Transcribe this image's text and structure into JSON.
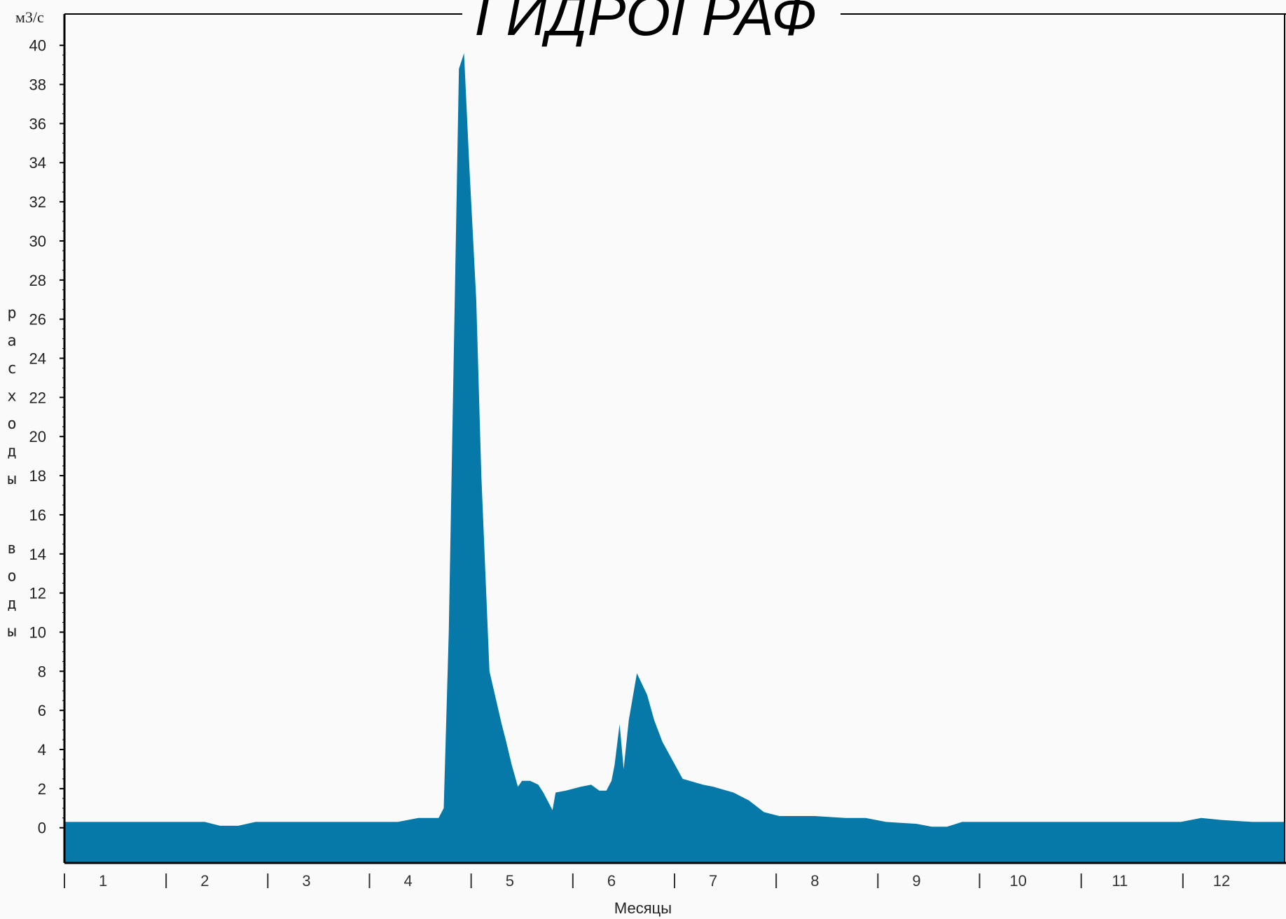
{
  "chart_data": {
    "type": "area",
    "title": "ГИДРОГРАФ",
    "unit_label": "м3/с",
    "ylabel": "расходы воды",
    "xlabel": "Месяцы",
    "ylim": [
      -1.8,
      41.6
    ],
    "xlim": [
      0.62,
      12.62
    ],
    "yticks": [
      "0",
      "2",
      "4",
      "6",
      "8",
      "10",
      "12",
      "14",
      "16",
      "18",
      "20",
      "22",
      "24",
      "26",
      "28",
      "30",
      "32",
      "34",
      "36",
      "38",
      "40"
    ],
    "month_labels": [
      "1",
      "2",
      "3",
      "4",
      "5",
      "6",
      "7",
      "8",
      "9",
      "10",
      "11",
      "12"
    ],
    "fill_color": "#0679a8",
    "series": [
      {
        "x": [
          0.62,
          1.5,
          2.0,
          2.15,
          2.33,
          2.5,
          3.0,
          3.5,
          3.75,
          3.9,
          4.1,
          4.25,
          4.3,
          4.35,
          4.4,
          4.5,
          4.55,
          4.6,
          4.67,
          4.72,
          4.8,
          4.92,
          4.96,
          5.02,
          5.08,
          5.12,
          5.2,
          5.28,
          5.33,
          5.42,
          5.45,
          5.55,
          5.7,
          5.8,
          5.88,
          5.95,
          6.0,
          6.03,
          6.08,
          6.12,
          6.17,
          6.25,
          6.35,
          6.42,
          6.5,
          6.7,
          6.9,
          7.0,
          7.2,
          7.35,
          7.5,
          7.65,
          8.0,
          8.3,
          8.5,
          8.7,
          9.0,
          9.15,
          9.3,
          9.45,
          10.0,
          10.6,
          11.2,
          11.6,
          11.8,
          12.0,
          12.3,
          12.62
        ],
        "y": [
          0.3,
          0.3,
          0.3,
          0.1,
          0.1,
          0.3,
          0.3,
          0.3,
          0.3,
          0.3,
          0.5,
          0.5,
          0.5,
          1.0,
          10.0,
          38.8,
          39.6,
          34.0,
          27.0,
          18.0,
          8.0,
          5.3,
          4.5,
          3.2,
          2.1,
          2.4,
          2.4,
          2.2,
          1.8,
          0.9,
          1.8,
          1.9,
          2.1,
          2.2,
          1.9,
          1.9,
          2.4,
          3.2,
          5.3,
          3.0,
          5.5,
          7.9,
          6.8,
          5.5,
          4.4,
          2.5,
          2.2,
          2.1,
          1.8,
          1.4,
          0.8,
          0.6,
          0.6,
          0.5,
          0.5,
          0.3,
          0.2,
          0.05,
          0.05,
          0.3,
          0.3,
          0.3,
          0.3,
          0.3,
          0.5,
          0.4,
          0.3,
          0.3
        ]
      }
    ]
  }
}
